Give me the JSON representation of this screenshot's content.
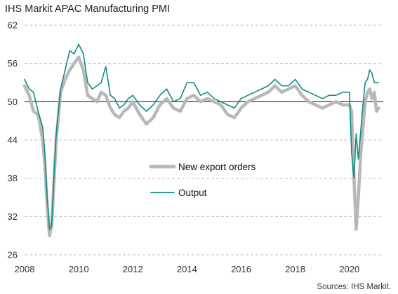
{
  "title": "IHS Markit APAC Manufacturing PMI",
  "source": "Sources: IHS Markit.",
  "colors": {
    "export": "#b8b8b8",
    "output": "#0e8a84",
    "grid": "#bdbdbd",
    "baseline": "#222222"
  },
  "chart_data": {
    "type": "line",
    "title": "IHS Markit APAC Manufacturing PMI",
    "xlabel": "",
    "ylabel": "",
    "xlim": [
      2008,
      2021.25
    ],
    "ylim": [
      26,
      62
    ],
    "yticks": [
      26,
      32,
      38,
      44,
      50,
      56,
      62
    ],
    "xticks": [
      2008,
      2010,
      2012,
      2014,
      2016,
      2018,
      2020
    ],
    "reference_line": 50,
    "grid": "horizontal dashed",
    "legend_position": "center-left",
    "series": [
      {
        "name": "New export orders",
        "x": [
          2008.0,
          2008.17,
          2008.33,
          2008.5,
          2008.67,
          2008.75,
          2008.83,
          2008.92,
          2009.0,
          2009.08,
          2009.17,
          2009.33,
          2009.5,
          2009.67,
          2009.83,
          2010.0,
          2010.17,
          2010.33,
          2010.5,
          2010.67,
          2010.83,
          2011.0,
          2011.17,
          2011.33,
          2011.5,
          2011.67,
          2011.83,
          2012.0,
          2012.25,
          2012.5,
          2012.75,
          2013.0,
          2013.25,
          2013.5,
          2013.75,
          2014.0,
          2014.25,
          2014.5,
          2014.75,
          2015.0,
          2015.25,
          2015.5,
          2015.75,
          2016.0,
          2016.25,
          2016.5,
          2016.75,
          2017.0,
          2017.25,
          2017.5,
          2017.75,
          2018.0,
          2018.25,
          2018.5,
          2018.75,
          2019.0,
          2019.25,
          2019.5,
          2019.75,
          2020.0,
          2020.08,
          2020.17,
          2020.25,
          2020.33,
          2020.42,
          2020.5,
          2020.58,
          2020.67,
          2020.75,
          2020.83,
          2020.92,
          2021.0,
          2021.08
        ],
        "values": [
          52.5,
          51.0,
          48.5,
          48.0,
          44.0,
          40.0,
          34.0,
          29.0,
          30.5,
          37.0,
          44.0,
          51.5,
          53.5,
          55.0,
          56.0,
          57.0,
          55.0,
          51.0,
          50.5,
          50.0,
          51.5,
          51.0,
          49.0,
          48.0,
          47.5,
          48.5,
          49.0,
          50.0,
          48.0,
          46.5,
          47.5,
          49.5,
          50.5,
          49.0,
          48.5,
          50.5,
          51.0,
          50.0,
          50.5,
          50.0,
          49.5,
          48.0,
          47.5,
          49.0,
          50.0,
          50.5,
          51.0,
          51.5,
          52.5,
          51.5,
          52.0,
          52.5,
          51.0,
          50.0,
          49.5,
          49.0,
          49.5,
          50.0,
          49.5,
          49.5,
          48.5,
          38.0,
          30.0,
          35.0,
          42.0,
          46.0,
          50.0,
          51.5,
          52.0,
          50.5,
          51.5,
          48.5,
          49.0
        ]
      },
      {
        "name": "Output",
        "x": [
          2008.0,
          2008.17,
          2008.33,
          2008.5,
          2008.67,
          2008.75,
          2008.83,
          2008.92,
          2009.0,
          2009.08,
          2009.17,
          2009.33,
          2009.5,
          2009.67,
          2009.83,
          2010.0,
          2010.17,
          2010.33,
          2010.5,
          2010.67,
          2010.83,
          2011.0,
          2011.17,
          2011.33,
          2011.5,
          2011.67,
          2011.83,
          2012.0,
          2012.25,
          2012.5,
          2012.75,
          2013.0,
          2013.25,
          2013.5,
          2013.75,
          2014.0,
          2014.25,
          2014.5,
          2014.75,
          2015.0,
          2015.25,
          2015.5,
          2015.75,
          2016.0,
          2016.25,
          2016.5,
          2016.75,
          2017.0,
          2017.25,
          2017.5,
          2017.75,
          2018.0,
          2018.25,
          2018.5,
          2018.75,
          2019.0,
          2019.25,
          2019.5,
          2019.75,
          2020.0,
          2020.08,
          2020.17,
          2020.25,
          2020.33,
          2020.42,
          2020.5,
          2020.58,
          2020.67,
          2020.75,
          2020.83,
          2020.92,
          2021.0,
          2021.08
        ],
        "values": [
          53.5,
          52.0,
          51.5,
          48.5,
          46.0,
          42.0,
          35.5,
          30.0,
          30.5,
          38.0,
          45.0,
          52.0,
          55.0,
          58.0,
          57.5,
          59.0,
          57.5,
          53.0,
          52.0,
          52.5,
          53.0,
          55.5,
          51.0,
          50.5,
          49.0,
          49.5,
          50.5,
          51.0,
          49.5,
          48.5,
          49.5,
          51.0,
          52.0,
          50.0,
          50.5,
          53.0,
          53.0,
          51.0,
          51.5,
          50.5,
          50.0,
          49.5,
          49.0,
          50.5,
          51.0,
          51.5,
          52.0,
          52.5,
          53.5,
          52.5,
          52.5,
          53.5,
          52.0,
          51.5,
          51.0,
          50.5,
          51.0,
          51.0,
          51.5,
          51.5,
          42.0,
          38.0,
          45.0,
          41.0,
          45.5,
          49.5,
          53.0,
          53.5,
          55.0,
          54.5,
          53.0,
          53.0,
          53.0
        ]
      }
    ]
  }
}
